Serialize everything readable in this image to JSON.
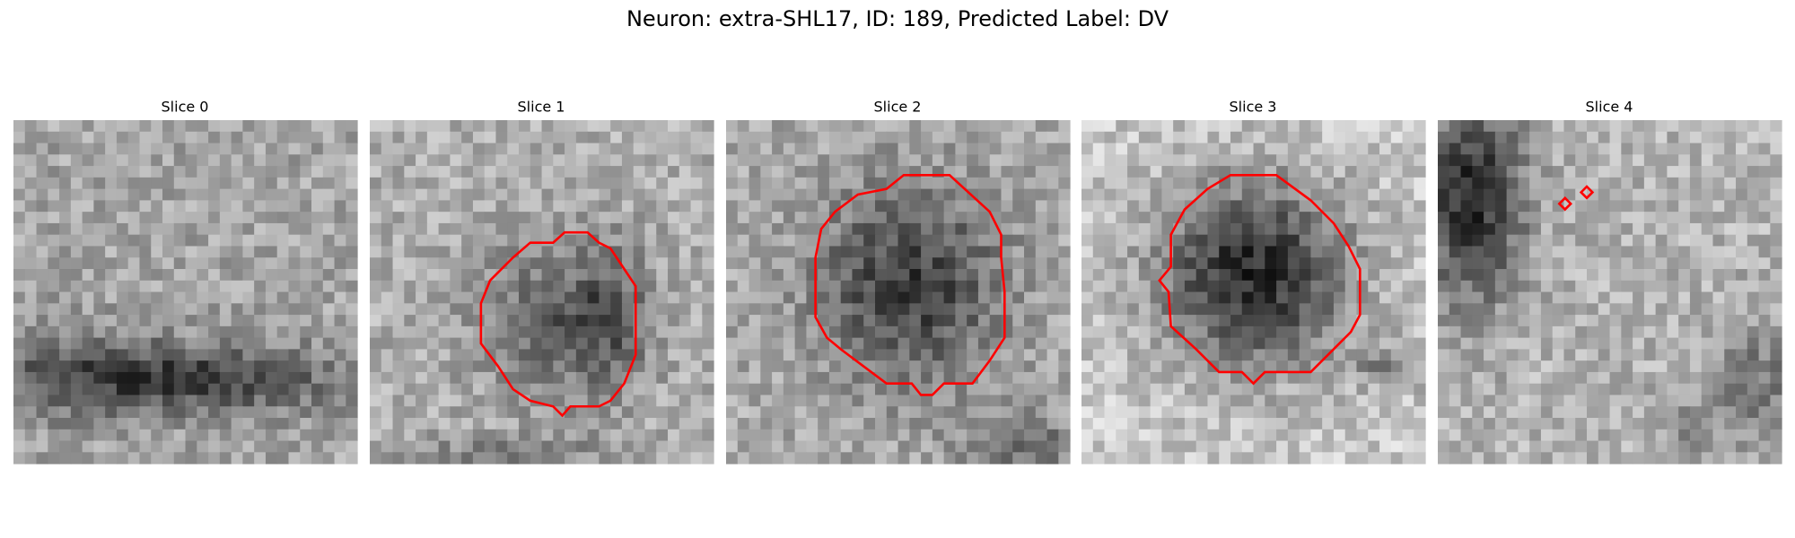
{
  "title": "Neuron: extra-SHL17, ID: 189, Predicted Label: DV",
  "panels": [
    {
      "title": "Slice 0"
    },
    {
      "title": "Slice 1"
    },
    {
      "title": "Slice 2"
    },
    {
      "title": "Slice 3"
    },
    {
      "title": "Slice 4"
    }
  ]
}
